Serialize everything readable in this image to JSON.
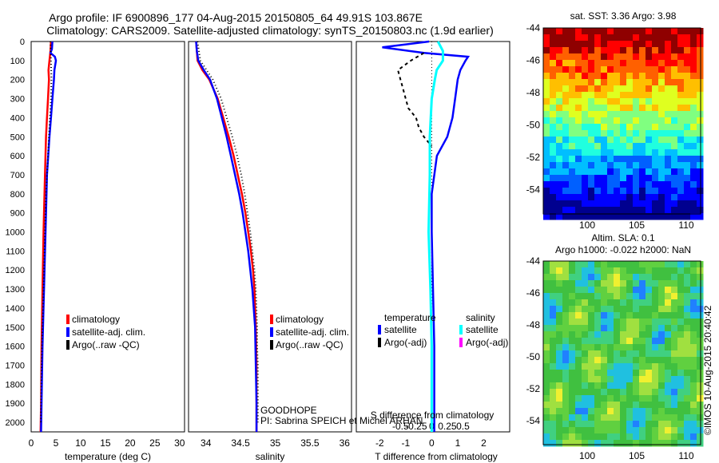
{
  "header": {
    "line1": "Argo profile: IF 6900896_177 04-Aug-2015 20150805_64 49.91S 103.867E",
    "line2": "Climatology: CARS2009. Satellite-adjusted climatology: synTS_20150803.nc (1.9d earlier)"
  },
  "colors": {
    "climatology": "#ff0000",
    "satellite": "#0000ff",
    "argo": "#000000",
    "salinity_satellite": "#00ffff",
    "salinity_argo": "#ff00ff"
  },
  "legend_profiles": {
    "climatology": "climatology",
    "satellite": "satellite-adj. clim.",
    "argo": "Argo(..raw -QC)"
  },
  "legend_diff": {
    "temperature_header": "temperature",
    "salinity_header": "salinity",
    "t_satellite": "satellite",
    "t_argo": "Argo(-adj)",
    "s_satellite": "satellite",
    "s_argo": "Argo(-adj)"
  },
  "annotations": {
    "project": "GOODHOPE",
    "pi": "PI: Sabrina SPEICH et Michel ARHAN",
    "credit": "©IMOS 10-Aug-2015 20:40:42"
  },
  "maps": {
    "sst_title": "sat. SST: 3.36 Argo: 3.98",
    "sla_title1": "Altim. SLA: 0.1",
    "sla_title2": "Argo h1000: -0.022 h2000: NaN",
    "lat_ticks": [
      "-44",
      "-46",
      "-48",
      "-50",
      "-52",
      "-54"
    ],
    "lon_ticks": [
      "100",
      "105",
      "110"
    ]
  },
  "chart_data": [
    {
      "type": "line",
      "panel": "temperature",
      "xlabel": "temperature (deg C)",
      "ylabel": "",
      "xlim": [
        0,
        31
      ],
      "ylim": [
        2050,
        0
      ],
      "x_ticks": [
        "0",
        "5",
        "10",
        "15",
        "20",
        "25",
        "30"
      ],
      "y_ticks": [
        "0",
        "100",
        "200",
        "300",
        "400",
        "500",
        "600",
        "700",
        "800",
        "900",
        "1000",
        "1100",
        "1200",
        "1300",
        "1400",
        "1500",
        "1600",
        "1700",
        "1800",
        "1900",
        "2000"
      ],
      "series": [
        {
          "name": "climatology",
          "depth": [
            0,
            50,
            100,
            150,
            200,
            300,
            400,
            500,
            700,
            1000,
            1300,
            1600,
            1900,
            2050
          ],
          "values": [
            4.0,
            3.9,
            3.7,
            3.5,
            3.6,
            3.4,
            3.2,
            3.0,
            2.8,
            2.5,
            2.3,
            2.1,
            2.0,
            1.9
          ]
        },
        {
          "name": "satellite-adj. clim.",
          "depth": [
            0,
            40,
            60,
            80,
            100,
            150,
            200,
            300,
            400,
            500,
            700,
            1000,
            1300,
            1600,
            1900,
            2050
          ],
          "values": [
            4.3,
            4.2,
            3.9,
            4.8,
            5.0,
            4.7,
            4.6,
            4.3,
            4.0,
            3.7,
            3.2,
            2.9,
            2.6,
            2.3,
            2.1,
            2.0
          ]
        },
        {
          "name": "Argo(..raw -QC)",
          "depth": [
            0,
            100,
            200,
            300,
            400,
            500,
            600,
            700,
            800,
            900,
            1000,
            1100,
            1200,
            1300,
            1400,
            1500,
            1600,
            1700,
            1800,
            1900,
            2000
          ],
          "values": [
            3.9,
            4.0,
            4.1,
            4.0,
            3.8,
            3.6,
            3.4,
            3.2,
            3.0,
            2.9,
            2.8,
            2.7,
            2.6,
            2.5,
            2.4,
            2.3,
            2.2,
            2.1,
            2.05,
            2.0,
            1.95
          ]
        }
      ]
    },
    {
      "type": "line",
      "panel": "salinity",
      "xlabel": "salinity",
      "ylabel": "",
      "xlim": [
        33.75,
        36.1
      ],
      "ylim": [
        2050,
        0
      ],
      "x_ticks": [
        "34",
        "34.5",
        "35",
        "35.5",
        "36"
      ],
      "series": [
        {
          "name": "climatology",
          "depth": [
            0,
            100,
            150,
            200,
            300,
            400,
            500,
            600,
            700,
            800,
            900,
            1000,
            1100,
            1200,
            1300,
            1400,
            1500,
            1700,
            1900,
            2050
          ],
          "values": [
            33.86,
            33.88,
            33.95,
            34.05,
            34.17,
            34.25,
            34.33,
            34.4,
            34.46,
            34.52,
            34.57,
            34.61,
            34.65,
            34.68,
            34.7,
            34.71,
            34.72,
            34.73,
            34.73,
            34.73
          ]
        },
        {
          "name": "satellite-adj. clim.",
          "depth": [
            0,
            50,
            100,
            150,
            200,
            300,
            400,
            500,
            600,
            700,
            800,
            900,
            1000,
            1100,
            1200,
            1300,
            1400,
            1500,
            1700,
            1900,
            2050
          ],
          "values": [
            33.86,
            33.87,
            33.89,
            33.97,
            34.06,
            34.16,
            34.23,
            34.3,
            34.36,
            34.42,
            34.48,
            34.53,
            34.57,
            34.61,
            34.64,
            34.67,
            34.69,
            34.71,
            34.72,
            34.73,
            34.73
          ]
        },
        {
          "name": "Argo(..raw -QC)",
          "depth": [
            0,
            100,
            200,
            300,
            400,
            500,
            600,
            700,
            800,
            900,
            1000,
            1100,
            1200,
            1300,
            1400,
            1500,
            1600,
            1700,
            1800,
            1900,
            2000
          ],
          "values": [
            33.88,
            33.92,
            34.1,
            34.22,
            34.3,
            34.38,
            34.45,
            34.51,
            34.56,
            34.6,
            34.64,
            34.67,
            34.7,
            34.72,
            34.73,
            34.74,
            34.74,
            34.75,
            34.75,
            34.75,
            34.75
          ]
        }
      ]
    },
    {
      "type": "line",
      "panel": "difference",
      "xlabel": "T difference from climatology",
      "xlabel_top": "S difference from climatology",
      "xlim": [
        -2.9,
        3.0
      ],
      "ylim": [
        2050,
        0
      ],
      "x_ticks": [
        "-2",
        "-1",
        "0",
        "1",
        "2"
      ],
      "x2_ticks": [
        "-0.5",
        "-0.25",
        "0",
        "0.25",
        "0.5"
      ],
      "series": [
        {
          "name": "temperature satellite",
          "depth": [
            0,
            30,
            60,
            80,
            100,
            150,
            200,
            300,
            400,
            500,
            600,
            800,
            1000,
            1300,
            1600,
            1900,
            2050
          ],
          "values": [
            -0.1,
            -1.9,
            -0.3,
            1.4,
            1.3,
            1.1,
            1.0,
            0.9,
            0.8,
            0.6,
            0.2,
            0.0,
            0.0,
            0.05,
            0.1,
            0.1,
            0.1
          ]
        },
        {
          "name": "temperature Argo(-adj)",
          "depth": [
            60,
            100,
            150,
            200,
            250,
            300,
            350,
            400,
            450,
            500,
            550
          ],
          "values": [
            -0.3,
            -0.8,
            -1.3,
            -1.2,
            -1.1,
            -1.0,
            -0.9,
            -0.6,
            -0.5,
            -0.3,
            0.0
          ]
        },
        {
          "name": "salinity satellite",
          "depth": [
            0,
            50,
            100,
            150,
            200,
            300,
            500,
            700,
            1000,
            1300,
            1600,
            1900,
            2050
          ],
          "values": [
            0.1,
            0.18,
            0.18,
            0.08,
            0.05,
            0.0,
            -0.03,
            -0.03,
            -0.05,
            -0.02,
            0.0,
            0.0,
            0.0
          ]
        },
        {
          "name": "salinity Argo(-adj)",
          "depth": [],
          "values": []
        }
      ]
    },
    {
      "type": "heatmap",
      "panel": "sst_map",
      "xlim": [
        96,
        112
      ],
      "ylim": [
        -56,
        -44
      ]
    },
    {
      "type": "heatmap",
      "panel": "sla_map",
      "xlim": [
        96,
        112
      ],
      "ylim": [
        -56,
        -44
      ]
    }
  ]
}
